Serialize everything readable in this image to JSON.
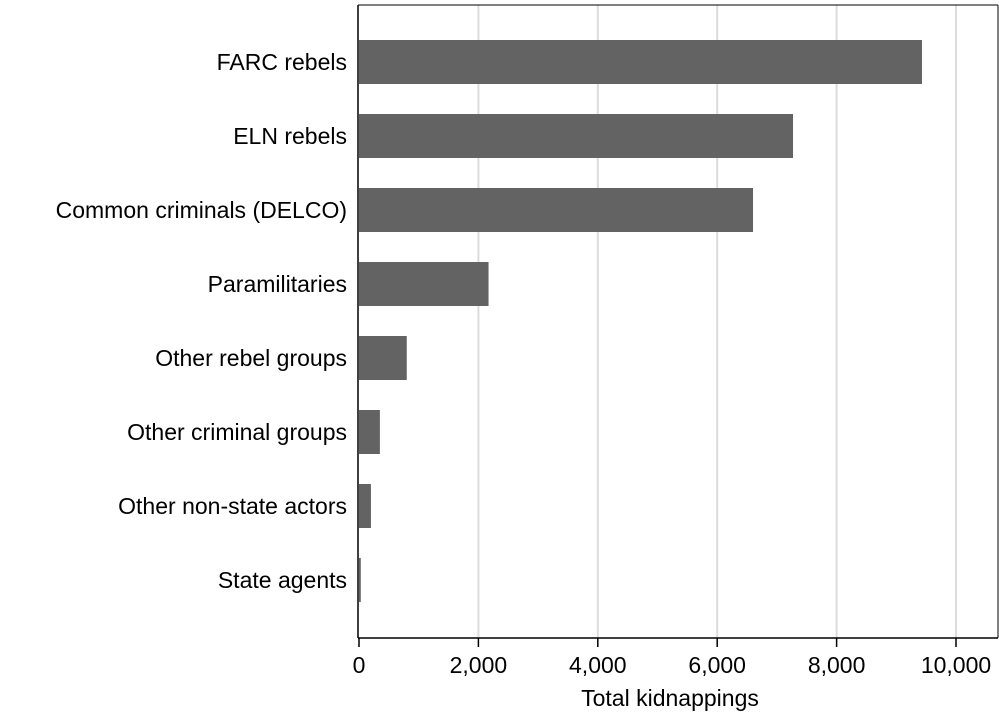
{
  "chart_data": {
    "type": "bar",
    "orientation": "horizontal",
    "categories": [
      "FARC rebels",
      "ELN rebels",
      "Common criminals (DELCO)",
      "Paramilitaries",
      "Other rebel groups",
      "Other criminal groups",
      "Other non-state actors",
      "State agents"
    ],
    "values": [
      9430,
      7270,
      6600,
      2170,
      800,
      350,
      200,
      30
    ],
    "xlabel": "Total kidnappings",
    "ylabel": "",
    "xlim": [
      0,
      10000
    ],
    "x_ticks": [
      0,
      2000,
      4000,
      6000,
      8000,
      10000
    ],
    "x_tick_labels": [
      "0",
      "2,000",
      "4,000",
      "6,000",
      "8,000",
      "10,000"
    ],
    "grid": "vertical",
    "bar_color": "#636363",
    "grid_color": "#dcdcdc",
    "legend": "none"
  }
}
